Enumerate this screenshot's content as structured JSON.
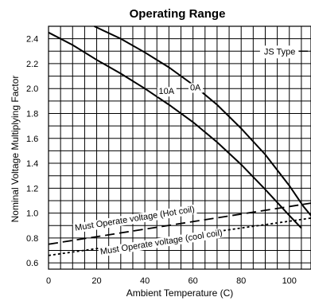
{
  "chart_data": {
    "type": "line",
    "title": "Operating Range",
    "xlabel": "Ambient Temperature (C)",
    "ylabel": "Nominal Voltage Multiplying Factor",
    "xlim": [
      0,
      109
    ],
    "ylim": [
      0.55,
      2.5
    ],
    "x_ticks": [
      0,
      20,
      40,
      60,
      80,
      100
    ],
    "y_ticks": [
      0.6,
      0.8,
      1.0,
      1.2,
      1.4,
      1.6,
      1.8,
      2.0,
      2.2,
      2.4
    ],
    "x_tick_labels": [
      "0",
      "20",
      "40",
      "60",
      "80",
      "100"
    ],
    "y_tick_labels": [
      "0.6",
      "0.8",
      "1.0",
      "1.2",
      "1.4",
      "1.6",
      "1.8",
      "2.0",
      "2.2",
      "2.4"
    ],
    "grid": true,
    "legend": "JS Type",
    "series": [
      {
        "name": "0A",
        "style": "solid",
        "x": [
          19,
          30,
          40,
          50,
          60,
          70,
          80,
          90,
          100,
          106,
          109
        ],
        "y": [
          2.5,
          2.4,
          2.29,
          2.17,
          2.03,
          1.87,
          1.68,
          1.47,
          1.22,
          1.05,
          0.98
        ]
      },
      {
        "name": "10A",
        "style": "solid",
        "x": [
          0,
          10,
          20,
          30,
          40,
          50,
          60,
          70,
          80,
          90,
          100,
          105
        ],
        "y": [
          2.45,
          2.35,
          2.23,
          2.12,
          2.0,
          1.87,
          1.73,
          1.57,
          1.39,
          1.19,
          0.98,
          0.88
        ]
      },
      {
        "name": "Must Operate voltage (Hot coil)",
        "style": "dashed",
        "x": [
          0,
          109
        ],
        "y": [
          0.75,
          1.08
        ]
      },
      {
        "name": "Must Operate voltage (cool coil)",
        "style": "dotted",
        "x": [
          0,
          109
        ],
        "y": [
          0.66,
          0.96
        ]
      }
    ]
  }
}
